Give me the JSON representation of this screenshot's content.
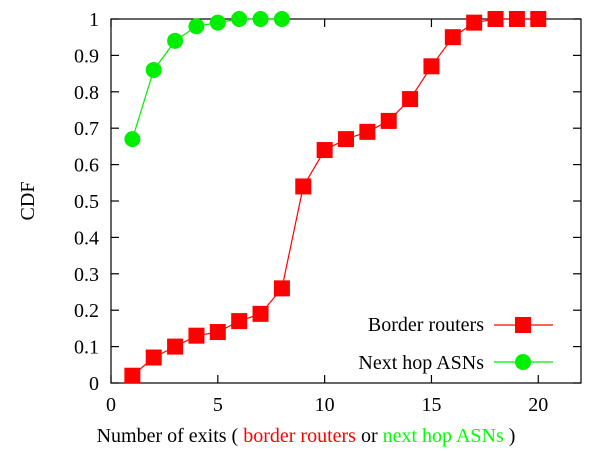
{
  "chart_data": {
    "type": "line",
    "ylabel": "CDF",
    "xlabel": {
      "prefix": "Number of exits (",
      "part1": "border routers",
      "middle": "or",
      "part2": "next hop ASNs",
      "suffix": ")",
      "part1_color": "#ff0000",
      "part2_color": "#00ff00"
    },
    "xlim": [
      0,
      22
    ],
    "ylim": [
      0,
      1
    ],
    "xticks": [
      0,
      5,
      10,
      15,
      20
    ],
    "yticks": [
      0,
      0.1,
      0.2,
      0.3,
      0.4,
      0.5,
      0.6,
      0.7,
      0.8,
      0.9,
      1
    ],
    "ytick_labels": [
      "0",
      "0.1",
      "0.2",
      "0.3",
      "0.4",
      "0.5",
      "0.6",
      "0.7",
      "0.8",
      "0.9",
      "1"
    ],
    "grid": false,
    "legend_position": "bottom-right",
    "series": [
      {
        "name": "Border routers",
        "color": "#ff0000",
        "marker": "square",
        "x": [
          1,
          2,
          3,
          4,
          5,
          6,
          7,
          8,
          9,
          10,
          11,
          12,
          13,
          14,
          15,
          16,
          17,
          18,
          19,
          20
        ],
        "y": [
          0.02,
          0.07,
          0.1,
          0.13,
          0.14,
          0.17,
          0.19,
          0.26,
          0.54,
          0.64,
          0.67,
          0.69,
          0.72,
          0.78,
          0.87,
          0.95,
          0.99,
          1.0,
          1.0,
          1.0
        ]
      },
      {
        "name": "Next hop ASNs",
        "color": "#00ee00",
        "marker": "circle",
        "x": [
          1,
          2,
          3,
          4,
          5,
          6,
          7,
          8
        ],
        "y": [
          0.67,
          0.86,
          0.94,
          0.98,
          0.99,
          1.0,
          1.0,
          1.0
        ]
      }
    ]
  }
}
